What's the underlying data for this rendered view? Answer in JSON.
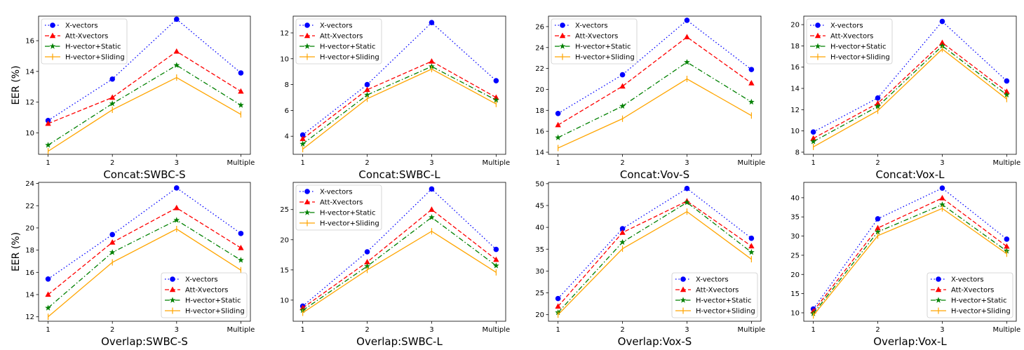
{
  "ylabel_shared": "EER (%)",
  "legend_labels": [
    "X-vectors",
    "Att-Xvectors",
    "H-vector+Static",
    "H-vector+Sliding"
  ],
  "series_styles": [
    {
      "name": "X-vectors",
      "color": "#0000ff",
      "dash": "1.5,3",
      "marker": "circle"
    },
    {
      "name": "Att-Xvectors",
      "color": "#ff0000",
      "dash": "6,3",
      "marker": "triangle"
    },
    {
      "name": "H-vector+Static",
      "color": "#008000",
      "dash": "7,3,1.5,3",
      "marker": "star"
    },
    {
      "name": "H-vector+Sliding",
      "color": "#ffa500",
      "dash": "",
      "marker": "tick"
    }
  ],
  "chart_data": [
    {
      "type": "line",
      "title": "Concat:SWBC-S",
      "xlabel": "Concat:SWBC-S",
      "ylabel": "EER (%)",
      "categories": [
        "1",
        "2",
        "3",
        "Multiple"
      ],
      "ylim": [
        8.6,
        17.6
      ],
      "yticks": [
        10,
        12,
        14,
        16
      ],
      "legend": "top-left",
      "series": [
        {
          "name": "X-vectors",
          "values": [
            10.8,
            13.5,
            17.4,
            13.9
          ]
        },
        {
          "name": "Att-Xvectors",
          "values": [
            10.6,
            12.3,
            15.3,
            12.7
          ]
        },
        {
          "name": "H-vector+Static",
          "values": [
            9.2,
            11.9,
            14.4,
            11.8
          ]
        },
        {
          "name": "H-vector+Sliding",
          "values": [
            8.8,
            11.5,
            13.6,
            11.2
          ]
        }
      ]
    },
    {
      "type": "line",
      "title": "Concat:SWBC-L",
      "xlabel": "Concat:SWBC-L",
      "ylabel": "",
      "categories": [
        "1",
        "2",
        "3",
        "Multiple"
      ],
      "ylim": [
        2.6,
        13.3
      ],
      "yticks": [
        4,
        6,
        8,
        10,
        12
      ],
      "legend": "top-left",
      "series": [
        {
          "name": "X-vectors",
          "values": [
            4.1,
            8.0,
            12.8,
            8.3
          ]
        },
        {
          "name": "Att-Xvectors",
          "values": [
            3.8,
            7.6,
            9.8,
            7.0
          ]
        },
        {
          "name": "H-vector+Static",
          "values": [
            3.4,
            7.2,
            9.4,
            6.8
          ]
        },
        {
          "name": "H-vector+Sliding",
          "values": [
            3.0,
            6.9,
            9.2,
            6.5
          ]
        }
      ]
    },
    {
      "type": "line",
      "title": "Concat:Vov-S",
      "xlabel": "Concat:Vov-S",
      "ylabel": "",
      "categories": [
        "1",
        "2",
        "3",
        "Multiple"
      ],
      "ylim": [
        13.8,
        27.0
      ],
      "yticks": [
        14,
        16,
        18,
        20,
        22,
        24,
        26
      ],
      "legend": "top-left",
      "series": [
        {
          "name": "X-vectors",
          "values": [
            17.7,
            21.4,
            26.6,
            21.9
          ]
        },
        {
          "name": "Att-Xvectors",
          "values": [
            16.6,
            20.3,
            25.0,
            20.6
          ]
        },
        {
          "name": "H-vector+Static",
          "values": [
            15.4,
            18.4,
            22.6,
            18.8
          ]
        },
        {
          "name": "H-vector+Sliding",
          "values": [
            14.4,
            17.2,
            21.0,
            17.5
          ]
        }
      ]
    },
    {
      "type": "line",
      "title": "Concat:Vox-L",
      "xlabel": "Concat:Vox-L",
      "ylabel": "",
      "categories": [
        "1",
        "2",
        "3",
        "Multiple"
      ],
      "ylim": [
        7.8,
        20.8
      ],
      "yticks": [
        8,
        10,
        12,
        14,
        16,
        18,
        20
      ],
      "legend": "top-left",
      "series": [
        {
          "name": "X-vectors",
          "values": [
            9.9,
            13.1,
            20.3,
            14.7
          ]
        },
        {
          "name": "Att-Xvectors",
          "values": [
            9.3,
            12.6,
            18.3,
            13.7
          ]
        },
        {
          "name": "H-vector+Static",
          "values": [
            9.0,
            12.3,
            18.0,
            13.4
          ]
        },
        {
          "name": "H-vector+Sliding",
          "values": [
            8.5,
            11.9,
            17.7,
            13.0
          ]
        }
      ]
    },
    {
      "type": "line",
      "title": "Overlap:SWBC-S",
      "xlabel": "Overlap:SWBC-S",
      "ylabel": "EER (%)",
      "categories": [
        "1",
        "2",
        "3",
        "Multiple"
      ],
      "ylim": [
        11.6,
        24.1
      ],
      "yticks": [
        12,
        14,
        16,
        18,
        20,
        22,
        24
      ],
      "legend": "bottom-right",
      "series": [
        {
          "name": "X-vectors",
          "values": [
            15.4,
            19.4,
            23.6,
            19.5
          ]
        },
        {
          "name": "Att-Xvectors",
          "values": [
            14.0,
            18.7,
            21.8,
            18.2
          ]
        },
        {
          "name": "H-vector+Static",
          "values": [
            12.8,
            17.8,
            20.7,
            17.1
          ]
        },
        {
          "name": "H-vector+Sliding",
          "values": [
            12.0,
            16.9,
            19.9,
            16.2
          ]
        }
      ]
    },
    {
      "type": "line",
      "title": "Overlap:SWBC-L",
      "xlabel": "Overlap:SWBC-L",
      "ylabel": "",
      "categories": [
        "1",
        "2",
        "3",
        "Multiple"
      ],
      "ylim": [
        6.5,
        29.5
      ],
      "yticks": [
        10,
        15,
        20,
        25
      ],
      "legend": "top-left",
      "series": [
        {
          "name": "X-vectors",
          "values": [
            9.0,
            18.0,
            28.4,
            18.4
          ]
        },
        {
          "name": "Att-Xvectors",
          "values": [
            8.7,
            16.3,
            25.0,
            16.7
          ]
        },
        {
          "name": "H-vector+Static",
          "values": [
            8.3,
            15.6,
            23.7,
            15.7
          ]
        },
        {
          "name": "H-vector+Sliding",
          "values": [
            7.9,
            15.0,
            21.4,
            14.6
          ]
        }
      ]
    },
    {
      "type": "line",
      "title": "Overlap:Vox-S",
      "xlabel": "Overlap:Vox-S",
      "ylabel": "",
      "categories": [
        "1",
        "2",
        "3",
        "Multiple"
      ],
      "ylim": [
        18.5,
        50.3
      ],
      "yticks": [
        20,
        25,
        30,
        35,
        40,
        45,
        50
      ],
      "legend": "bottom-right",
      "series": [
        {
          "name": "X-vectors",
          "values": [
            23.7,
            39.7,
            48.9,
            37.5
          ]
        },
        {
          "name": "Att-Xvectors",
          "values": [
            21.9,
            38.8,
            46.0,
            35.7
          ]
        },
        {
          "name": "H-vector+Static",
          "values": [
            20.5,
            36.6,
            45.7,
            34.3
          ]
        },
        {
          "name": "H-vector+Sliding",
          "values": [
            20.0,
            35.1,
            43.6,
            32.7
          ]
        }
      ]
    },
    {
      "type": "line",
      "title": "Overlap:Vox-L",
      "xlabel": "Overlap:Vox-L",
      "ylabel": "",
      "categories": [
        "1",
        "2",
        "3",
        "Multiple"
      ],
      "ylim": [
        7.8,
        44.0
      ],
      "yticks": [
        10,
        15,
        20,
        25,
        30,
        35,
        40
      ],
      "legend": "bottom-right",
      "series": [
        {
          "name": "X-vectors",
          "values": [
            11.0,
            34.5,
            42.5,
            29.2
          ]
        },
        {
          "name": "Att-Xvectors",
          "values": [
            10.4,
            32.1,
            39.9,
            27.3
          ]
        },
        {
          "name": "H-vector+Static",
          "values": [
            9.8,
            31.1,
            38.2,
            26.1
          ]
        },
        {
          "name": "H-vector+Sliding",
          "values": [
            9.3,
            30.1,
            37.2,
            25.4
          ]
        }
      ]
    }
  ]
}
